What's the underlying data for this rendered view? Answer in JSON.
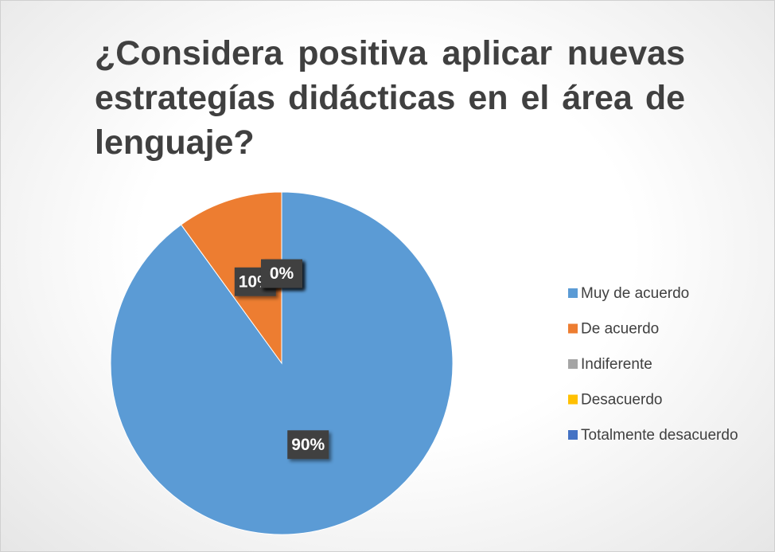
{
  "chart_data": {
    "type": "pie",
    "title": "¿Considera positiva aplicar nuevas estrategías didácticas en el área de lenguaje?",
    "categories": [
      "Muy de acuerdo",
      "De acuerdo",
      "Indiferente",
      "Desacuerdo",
      "Totalmente desacuerdo"
    ],
    "values": [
      90,
      10,
      0,
      0,
      0
    ],
    "value_labels": [
      "90%",
      "10%",
      "0%",
      "0%",
      "0%"
    ],
    "colors": [
      "#5b9bd5",
      "#ed7d31",
      "#a5a5a5",
      "#ffc000",
      "#4472c4"
    ],
    "legend": "right"
  }
}
